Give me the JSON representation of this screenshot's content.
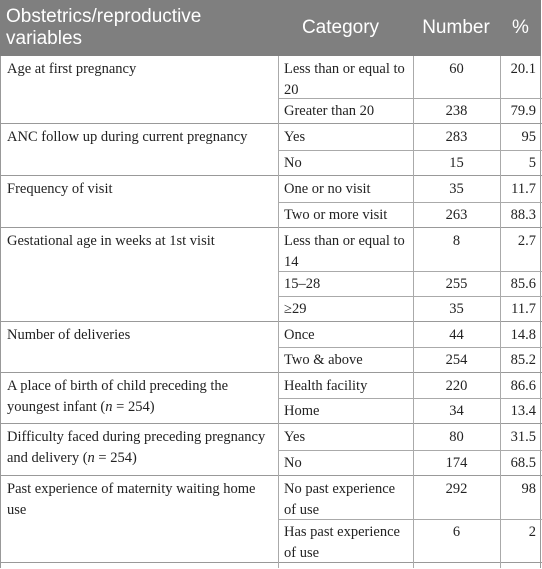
{
  "header": {
    "variable": "Obstetrics/reproductive variables",
    "category": "Category",
    "number": "Number",
    "percent": "%"
  },
  "rows": [
    {
      "variable": "Age at first pregnancy",
      "entries": [
        {
          "category": "Less than or equal to 20",
          "number": "60",
          "percent": "20.1"
        },
        {
          "category": "Greater than 20",
          "number": "238",
          "percent": "79.9"
        }
      ]
    },
    {
      "variable": "ANC follow up during current pregnancy",
      "entries": [
        {
          "category": "Yes",
          "number": "283",
          "percent": "95"
        },
        {
          "category": "No",
          "number": "15",
          "percent": "5"
        }
      ]
    },
    {
      "variable": "Frequency of visit",
      "entries": [
        {
          "category": "One or no visit",
          "number": "35",
          "percent": "11.7"
        },
        {
          "category": "Two or more visit",
          "number": "263",
          "percent": "88.3"
        }
      ]
    },
    {
      "variable": "Gestational age in weeks at 1st visit",
      "entries": [
        {
          "category": "Less than or equal to 14",
          "number": "8",
          "percent": "2.7"
        },
        {
          "category": "15–28",
          "number": "255",
          "percent": "85.6"
        },
        {
          "category": "≥29",
          "number": "35",
          "percent": "11.7"
        }
      ]
    },
    {
      "variable": "Number of deliveries",
      "entries": [
        {
          "category": "Once",
          "number": "44",
          "percent": "14.8"
        },
        {
          "category": "Two & above",
          "number": "254",
          "percent": "85.2"
        }
      ]
    },
    {
      "variable_prefix": "A place of birth of child preceding the youngest infant (",
      "variable_n": "n",
      "variable_suffix": " = 254)",
      "entries": [
        {
          "category": "Health facility",
          "number": "220",
          "percent": "86.6"
        },
        {
          "category": "Home",
          "number": "34",
          "percent": "13.4"
        }
      ]
    },
    {
      "variable_prefix": "Difficulty faced during preceding pregnancy and delivery (",
      "variable_n": "n",
      "variable_suffix": " = 254)",
      "entries": [
        {
          "category": "Yes",
          "number": "80",
          "percent": "31.5"
        },
        {
          "category": "No",
          "number": "174",
          "percent": "68.5"
        }
      ]
    },
    {
      "variable": "Past experience of maternity waiting home use",
      "entries": [
        {
          "category": "No past experience of use",
          "number": "292",
          "percent": "98"
        },
        {
          "category": "Has past experience of use",
          "number": "6",
          "percent": "2"
        }
      ]
    }
  ]
}
